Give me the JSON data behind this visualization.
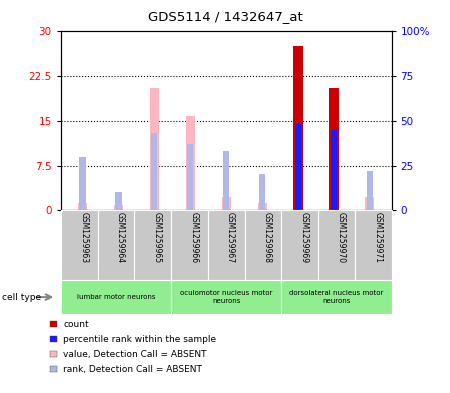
{
  "title": "GDS5114 / 1432647_at",
  "samples": [
    "GSM1259963",
    "GSM1259964",
    "GSM1259965",
    "GSM1259966",
    "GSM1259967",
    "GSM1259968",
    "GSM1259969",
    "GSM1259970",
    "GSM1259971"
  ],
  "count_values": [
    0,
    0,
    0,
    0,
    0,
    0,
    27.5,
    20.5,
    0
  ],
  "rank_values_pct": [
    0,
    0,
    0,
    0,
    0,
    0,
    48.0,
    45.0,
    0
  ],
  "absent_value": [
    1.2,
    0.8,
    20.5,
    15.8,
    2.2,
    1.2,
    0,
    0,
    2.2
  ],
  "absent_rank_pct": [
    30.0,
    10.0,
    43.0,
    37.0,
    33.0,
    20.0,
    0,
    0,
    22.0
  ],
  "cell_groups": [
    {
      "label": "lumbar motor neurons",
      "start": 0,
      "end": 2
    },
    {
      "label": "oculomotor nucleus motor\nneurons",
      "start": 3,
      "end": 5
    },
    {
      "label": "dorsolateral nucleus motor\nneurons",
      "start": 6,
      "end": 8
    }
  ],
  "ylim_left": [
    0,
    30
  ],
  "ylim_right": [
    0,
    100
  ],
  "yticks_left": [
    0,
    7.5,
    15,
    22.5,
    30
  ],
  "yticks_right": [
    0,
    25,
    50,
    75,
    100
  ],
  "yticklabels_left": [
    "0",
    "7.5",
    "15",
    "22.5",
    "30"
  ],
  "yticklabels_right": [
    "0",
    "25",
    "50",
    "75",
    "100%"
  ],
  "count_color": "#cc0000",
  "rank_color": "#1a1aff",
  "absent_value_color": "#ffb6c1",
  "absent_rank_color": "#b0b8e8",
  "sample_box_color": "#c8c8c8",
  "cell_group_color": "#90ee90",
  "legend_items": [
    {
      "label": "count",
      "color": "#cc0000"
    },
    {
      "label": "percentile rank within the sample",
      "color": "#1a1aff"
    },
    {
      "label": "value, Detection Call = ABSENT",
      "color": "#ffb6c1"
    },
    {
      "label": "rank, Detection Call = ABSENT",
      "color": "#b0b8e8"
    }
  ]
}
